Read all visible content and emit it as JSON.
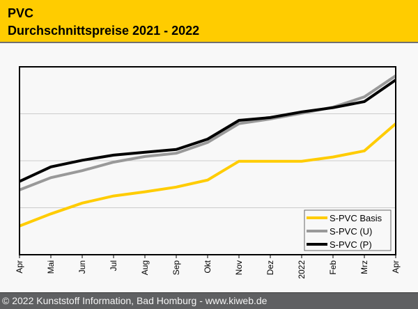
{
  "header": {
    "title": "PVC",
    "subtitle": "Durchschnittspreise 2021 - 2022"
  },
  "footer": {
    "text": "© 2022 Kunststoff Information, Bad Homburg - www.kiweb.de"
  },
  "chart_data": {
    "type": "line",
    "title": "PVC Durchschnittspreise 2021 - 2022",
    "xlabel": "",
    "ylabel": "",
    "x": [
      "Apr",
      "Mai",
      "Jun",
      "Jul",
      "Aug",
      "Sep",
      "Okt",
      "Nov",
      "Dez",
      "2022",
      "Feb",
      "Mrz",
      "Apr"
    ],
    "ylim": [
      0,
      4
    ],
    "y_units": "relative (no y-axis labels shown; gridlines at 1, 2, 3)",
    "y_gridlines": [
      1,
      2,
      3
    ],
    "grid": true,
    "legend_position": "bottom-right",
    "series": [
      {
        "name": "S-PVC Basis",
        "color": "#ffcc00",
        "values": [
          0.61,
          0.87,
          1.1,
          1.25,
          1.34,
          1.44,
          1.59,
          1.99,
          1.99,
          1.99,
          2.08,
          2.21,
          2.79
        ]
      },
      {
        "name": "S-PVC (U)",
        "color": "#999999",
        "values": [
          1.38,
          1.64,
          1.79,
          1.97,
          2.09,
          2.16,
          2.39,
          2.79,
          2.89,
          3.01,
          3.14,
          3.36,
          3.81
        ]
      },
      {
        "name": "S-PVC (P)",
        "color": "#000000",
        "values": [
          1.56,
          1.87,
          2.01,
          2.12,
          2.18,
          2.24,
          2.46,
          2.86,
          2.92,
          3.04,
          3.13,
          3.26,
          3.72
        ]
      }
    ]
  }
}
